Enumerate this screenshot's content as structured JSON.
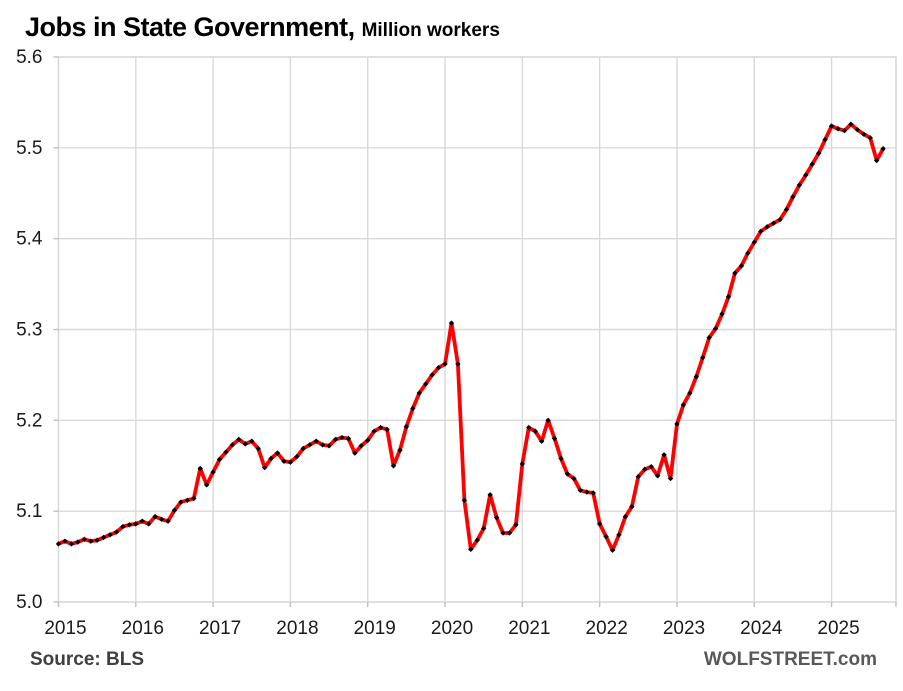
{
  "title": {
    "main": "Jobs in State Government,",
    "subtitle": "Million workers"
  },
  "footer": {
    "source": "Source: BLS",
    "brand": "WOLFSTREET.com"
  },
  "colors": {
    "line": "#FF0000",
    "marker": "#000000",
    "gridline": "#D9D9D9",
    "tick": "#BFBFBF",
    "axis_text": "#1a1a1a"
  },
  "chart_data": {
    "type": "line",
    "title": "Jobs in State Government, Million workers",
    "ylabel": "Million workers",
    "xlabel": "",
    "grid": true,
    "legend": "none",
    "marker": "diamond",
    "ylim": [
      5.0,
      5.6
    ],
    "y_ticks": [
      5.0,
      5.1,
      5.2,
      5.3,
      5.4,
      5.5,
      5.6
    ],
    "x_tick_labels": [
      "2015",
      "2016",
      "2017",
      "2018",
      "2019",
      "2020",
      "2021",
      "2022",
      "2023",
      "2024",
      "2025"
    ],
    "x_domain_months": 130,
    "start_month": "2015-01",
    "end_month": "2025-09",
    "series": [
      {
        "name": "State government jobs, million workers, monthly",
        "values": [
          5.064,
          5.067,
          5.064,
          5.066,
          5.069,
          5.067,
          5.068,
          5.071,
          5.074,
          5.077,
          5.083,
          5.085,
          5.086,
          5.089,
          5.086,
          5.094,
          5.091,
          5.089,
          5.101,
          5.11,
          5.112,
          5.114,
          5.147,
          5.129,
          5.143,
          5.157,
          5.165,
          5.173,
          5.179,
          5.174,
          5.177,
          5.169,
          5.148,
          5.158,
          5.164,
          5.155,
          5.154,
          5.16,
          5.169,
          5.173,
          5.177,
          5.173,
          5.172,
          5.179,
          5.181,
          5.18,
          5.164,
          5.172,
          5.178,
          5.188,
          5.192,
          5.19,
          5.15,
          5.167,
          5.193,
          5.213,
          5.23,
          5.24,
          5.25,
          5.258,
          5.262,
          5.307,
          5.262,
          5.112,
          5.058,
          5.068,
          5.081,
          5.118,
          5.093,
          5.076,
          5.076,
          5.085,
          5.152,
          5.192,
          5.188,
          5.177,
          5.2,
          5.18,
          5.158,
          5.141,
          5.136,
          5.123,
          5.121,
          5.12,
          5.086,
          5.072,
          5.057,
          5.074,
          5.094,
          5.105,
          5.138,
          5.146,
          5.149,
          5.139,
          5.162,
          5.136,
          5.196,
          5.217,
          5.23,
          5.248,
          5.269,
          5.291,
          5.301,
          5.317,
          5.336,
          5.362,
          5.37,
          5.384,
          5.396,
          5.408,
          5.413,
          5.417,
          5.421,
          5.432,
          5.446,
          5.459,
          5.47,
          5.482,
          5.494,
          5.509,
          5.524,
          5.521,
          5.519,
          5.526,
          5.52,
          5.515,
          5.511,
          5.486,
          5.499
        ]
      }
    ]
  }
}
